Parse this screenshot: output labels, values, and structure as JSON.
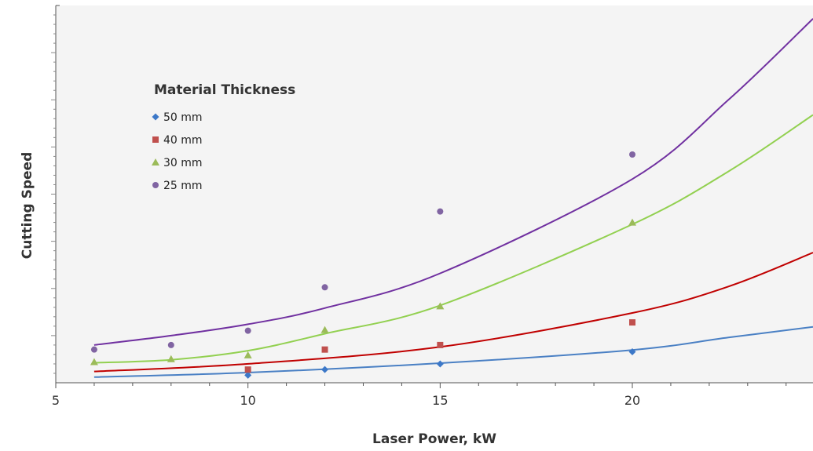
{
  "chart_data": {
    "type": "scatter",
    "title": "",
    "xlabel": "Laser Power, kW",
    "ylabel": "Cutting Speed",
    "xlim": [
      5,
      24.7
    ],
    "ylim": [
      0,
      100
    ],
    "x_ticks": [
      5,
      10,
      15,
      20
    ],
    "y_ticks_labeled": false,
    "grid": false,
    "background": "#f4f4f4",
    "legend": {
      "title": "Material Thickness",
      "position": "top-left"
    },
    "series": [
      {
        "name": "50 mm",
        "marker": "diamond",
        "color": "#3c78c8",
        "line_color": "#4a80c4",
        "x": [
          10,
          12,
          15,
          20
        ],
        "y": [
          2,
          3.5,
          5,
          8.2
        ],
        "trend": [
          1.3,
          1.33,
          1.4,
          1.52,
          1.65,
          1.8,
          1.98,
          2.18,
          2.41,
          2.67,
          2.96,
          3.29,
          3.66,
          4.08,
          4.55,
          5.08,
          5.68,
          6.35,
          7.1,
          7.94,
          8.89,
          9.95,
          11.14,
          12.48,
          13.97,
          15.64,
          17.5,
          19.55,
          21.0,
          21.0
        ]
      },
      {
        "name": "40 mm",
        "marker": "square",
        "color": "#c0504d",
        "line_color": "#c00000",
        "x": [
          10,
          12,
          15,
          20
        ],
        "y": [
          3.5,
          8.8,
          10,
          16
        ]
      },
      {
        "name": "30 mm",
        "marker": "triangle",
        "color": "#9bbb59",
        "line_color": "#92d050",
        "x": [
          6,
          8,
          10,
          12,
          15,
          20
        ],
        "y": [
          5.5,
          6.3,
          7.3,
          14,
          20.3,
          42.5
        ]
      },
      {
        "name": "25 mm",
        "marker": "circle",
        "color": "#8064a2",
        "line_color": "#7030a0",
        "x": [
          6,
          8,
          10,
          12,
          15,
          20
        ],
        "y": [
          8.8,
          10,
          13.8,
          25.3,
          45.4,
          60.5
        ]
      }
    ],
    "trendlines": [
      {
        "series": "50 mm",
        "points": [
          [
            6,
            1.5
          ],
          [
            10,
            2.7
          ],
          [
            15,
            5.2
          ],
          [
            20,
            8.7
          ],
          [
            22.5,
            12.0
          ],
          [
            24.7,
            14.8
          ]
        ]
      },
      {
        "series": "40 mm",
        "points": [
          [
            6,
            3.0
          ],
          [
            10,
            5.0
          ],
          [
            15,
            9.5
          ],
          [
            20,
            18.5
          ],
          [
            22.5,
            25.5
          ],
          [
            24.7,
            34.5
          ]
        ]
      },
      {
        "series": "30 mm",
        "points": [
          [
            6,
            5.3
          ],
          [
            8,
            6.1
          ],
          [
            10,
            8.5
          ],
          [
            12,
            13.0
          ],
          [
            15,
            20.5
          ],
          [
            20,
            42.0
          ],
          [
            22.5,
            56.0
          ],
          [
            24.7,
            71.0
          ]
        ]
      },
      {
        "series": "25 mm",
        "points": [
          [
            6,
            10.0
          ],
          [
            8,
            12.5
          ],
          [
            10,
            15.5
          ],
          [
            12,
            19.8
          ],
          [
            15,
            29.0
          ],
          [
            20,
            54.0
          ],
          [
            22.5,
            75.0
          ],
          [
            24.7,
            96.5
          ]
        ]
      }
    ]
  }
}
